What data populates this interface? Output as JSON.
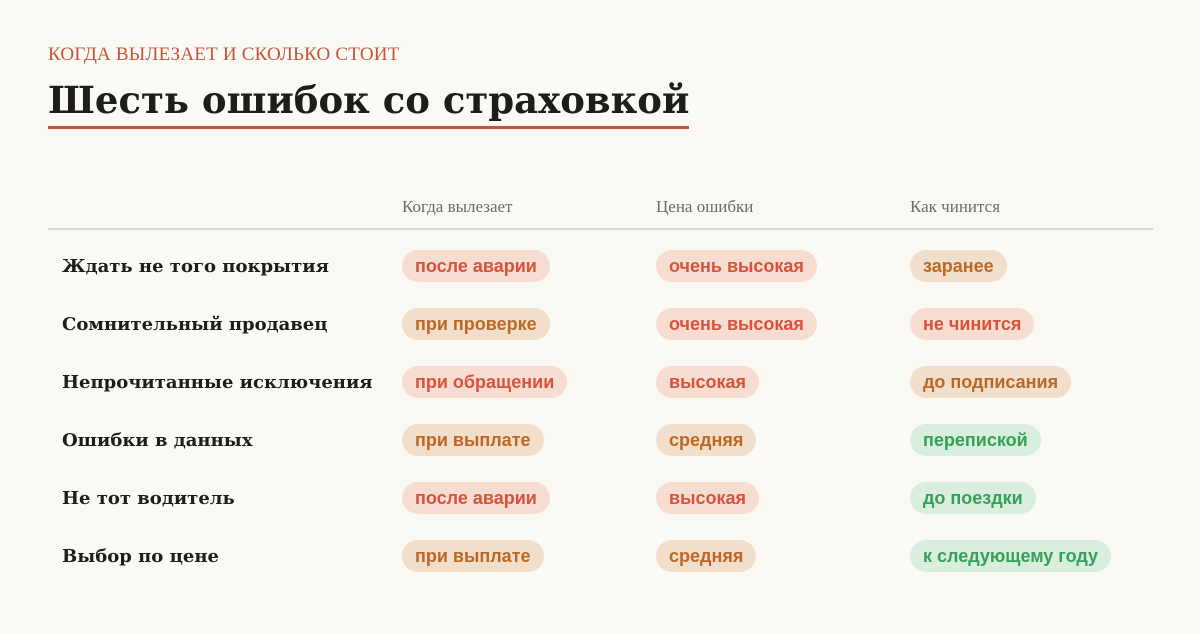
{
  "header": {
    "kicker": "КОГДА ВЫЛЕЗАЕТ И СКОЛЬКО СТОИТ",
    "title": "Шесть ошибок со страховкой"
  },
  "columns": [
    "Когда вылезает",
    "Цена ошибки",
    "Как чинится"
  ],
  "colors": {
    "accent": "#C9533A",
    "red_text": "#D9523A",
    "red_bg": "#F7DCD2",
    "amber_text": "#BD6725",
    "amber_bg": "#F1DFCC",
    "green_text": "#35A057",
    "green_bg": "#D9EEDC"
  },
  "rows": [
    {
      "label": "Ждать не того покрытия",
      "cells": [
        {
          "text": "после аварии",
          "tone": "red"
        },
        {
          "text": "очень высокая",
          "tone": "red"
        },
        {
          "text": "заранее",
          "tone": "amber"
        }
      ]
    },
    {
      "label": "Сомнительный продавец",
      "cells": [
        {
          "text": "при проверке",
          "tone": "amber"
        },
        {
          "text": "очень высокая",
          "tone": "red"
        },
        {
          "text": "не чинится",
          "tone": "red"
        }
      ]
    },
    {
      "label": "Непрочитанные исключения",
      "cells": [
        {
          "text": "при обращении",
          "tone": "red"
        },
        {
          "text": "высокая",
          "tone": "red"
        },
        {
          "text": "до подписания",
          "tone": "amber"
        }
      ]
    },
    {
      "label": "Ошибки в данных",
      "cells": [
        {
          "text": "при выплате",
          "tone": "amber"
        },
        {
          "text": "средняя",
          "tone": "amber"
        },
        {
          "text": "перепиской",
          "tone": "green"
        }
      ]
    },
    {
      "label": "Не тот водитель",
      "cells": [
        {
          "text": "после аварии",
          "tone": "red"
        },
        {
          "text": "высокая",
          "tone": "red"
        },
        {
          "text": "до поездки",
          "tone": "green"
        }
      ]
    },
    {
      "label": "Выбор по цене",
      "cells": [
        {
          "text": "при выплате",
          "tone": "amber"
        },
        {
          "text": "средняя",
          "tone": "amber"
        },
        {
          "text": "к следующему году",
          "tone": "green"
        }
      ]
    }
  ]
}
